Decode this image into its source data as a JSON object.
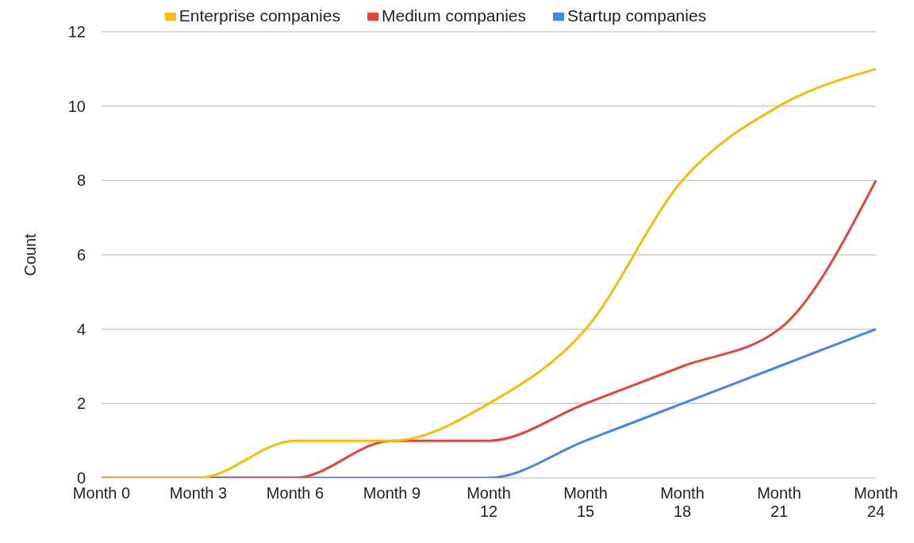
{
  "chart_data": {
    "type": "line",
    "ylabel": "Count",
    "categories": [
      "Month 0",
      "Month 3",
      "Month 6",
      "Month 9",
      "Month 12",
      "Month 15",
      "Month 18",
      "Month 21",
      "Month 24"
    ],
    "series": [
      {
        "name": "Startup companies",
        "color": "#4285f4",
        "values": [
          0,
          0,
          0,
          0,
          0,
          1,
          2,
          3,
          4
        ]
      },
      {
        "name": "Medium companies",
        "color": "#ea4335",
        "values": [
          0,
          0,
          0,
          1,
          1,
          2,
          3,
          4,
          8
        ]
      },
      {
        "name": "Enterprise companies",
        "color": "#fbbc04",
        "values": [
          0,
          0,
          1,
          1,
          2,
          4,
          8,
          10,
          11
        ]
      }
    ],
    "ylim": [
      0,
      12
    ],
    "yticks": [
      0,
      2,
      4,
      6,
      8,
      10,
      12
    ],
    "grid": "y",
    "legend": "top",
    "marker": "none"
  }
}
